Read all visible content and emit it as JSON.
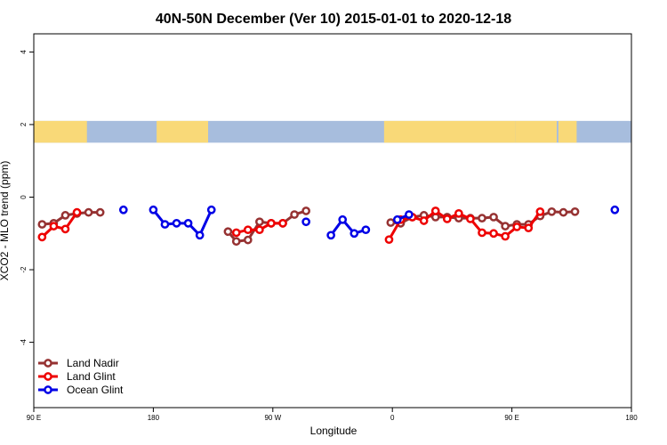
{
  "chart_data": {
    "type": "line",
    "title": "40N-50N December (Ver 10)   2015-01-01 to 2020-12-18",
    "xlabel": "Longitude",
    "ylabel": "XCO2 - MLO trend (ppm)",
    "xlim": [
      -90,
      270
    ],
    "ylim": [
      -5.8,
      4.5
    ],
    "x_ticks": [
      {
        "value": -90,
        "label": "90 E"
      },
      {
        "value": -18,
        "label": "180"
      },
      {
        "value": 54,
        "label": "90 W"
      },
      {
        "value": 126,
        "label": "0"
      },
      {
        "value": 198,
        "label": "90 E"
      },
      {
        "value": 270,
        "label": "180"
      }
    ],
    "y_ticks": [
      {
        "value": 4,
        "label": "4"
      },
      {
        "value": 2,
        "label": "2"
      },
      {
        "value": 0,
        "label": "0"
      },
      {
        "value": -2,
        "label": "-2"
      },
      {
        "value": -4,
        "label": "-4"
      }
    ],
    "map_band": {
      "y_min": 1.5,
      "y_max": 2.1,
      "ocean_color": "#a7bddd",
      "land_color": "#f9d978"
    },
    "legend_position": "bottom-left",
    "series": [
      {
        "name": "Land Nadir",
        "color": "#963232",
        "segments": [
          [
            [
              -85,
              -0.75
            ],
            [
              -78,
              -0.72
            ],
            [
              -71,
              -0.5
            ],
            [
              -64,
              -0.45
            ],
            [
              -57,
              -0.42
            ],
            [
              -50,
              -0.42
            ]
          ],
          [
            [
              27,
              -0.95
            ],
            [
              32,
              -1.22
            ],
            [
              39,
              -1.18
            ],
            [
              46,
              -0.68
            ],
            [
              53,
              -0.72
            ],
            [
              60,
              -0.72
            ],
            [
              67,
              -0.48
            ],
            [
              74,
              -0.38
            ]
          ],
          [
            [
              125,
              -0.7
            ],
            [
              131,
              -0.72
            ],
            [
              138,
              -0.55
            ],
            [
              145,
              -0.5
            ],
            [
              152,
              -0.55
            ],
            [
              159,
              -0.55
            ],
            [
              166,
              -0.58
            ],
            [
              173,
              -0.58
            ],
            [
              180,
              -0.58
            ],
            [
              187,
              -0.55
            ],
            [
              194,
              -0.8
            ],
            [
              201,
              -0.75
            ],
            [
              208,
              -0.75
            ],
            [
              215,
              -0.52
            ],
            [
              222,
              -0.4
            ],
            [
              229,
              -0.42
            ],
            [
              236,
              -0.4
            ]
          ]
        ]
      },
      {
        "name": "Land Glint",
        "color": "#ee0000",
        "segments": [
          [
            [
              -85,
              -1.1
            ],
            [
              -78,
              -0.8
            ],
            [
              -71,
              -0.88
            ],
            [
              -64,
              -0.42
            ]
          ],
          [
            [
              32,
              -0.98
            ],
            [
              39,
              -0.9
            ],
            [
              46,
              -0.9
            ],
            [
              53,
              -0.72
            ],
            [
              60,
              -0.72
            ]
          ],
          [
            [
              124,
              -1.17
            ],
            [
              131,
              -0.62
            ],
            [
              138,
              -0.55
            ],
            [
              145,
              -0.65
            ],
            [
              152,
              -0.38
            ],
            [
              159,
              -0.6
            ],
            [
              166,
              -0.45
            ],
            [
              173,
              -0.6
            ],
            [
              180,
              -0.98
            ],
            [
              187,
              -1.0
            ],
            [
              194,
              -1.08
            ],
            [
              201,
              -0.82
            ],
            [
              208,
              -0.85
            ],
            [
              215,
              -0.4
            ]
          ]
        ]
      },
      {
        "name": "Ocean Glint",
        "color": "#0000e6",
        "segments": [
          [
            [
              -36,
              -0.35
            ]
          ],
          [
            [
              -18,
              -0.35
            ],
            [
              -11,
              -0.75
            ],
            [
              -4,
              -0.72
            ],
            [
              3,
              -0.72
            ],
            [
              10,
              -1.05
            ],
            [
              17,
              -0.35
            ]
          ],
          [
            [
              74,
              -0.68
            ]
          ],
          [
            [
              89,
              -1.05
            ],
            [
              96,
              -0.62
            ],
            [
              103,
              -1.0
            ],
            [
              110,
              -0.9
            ]
          ],
          [
            [
              129,
              -0.62
            ],
            [
              136,
              -0.48
            ]
          ],
          [
            [
              260,
              -0.35
            ]
          ]
        ]
      }
    ]
  }
}
